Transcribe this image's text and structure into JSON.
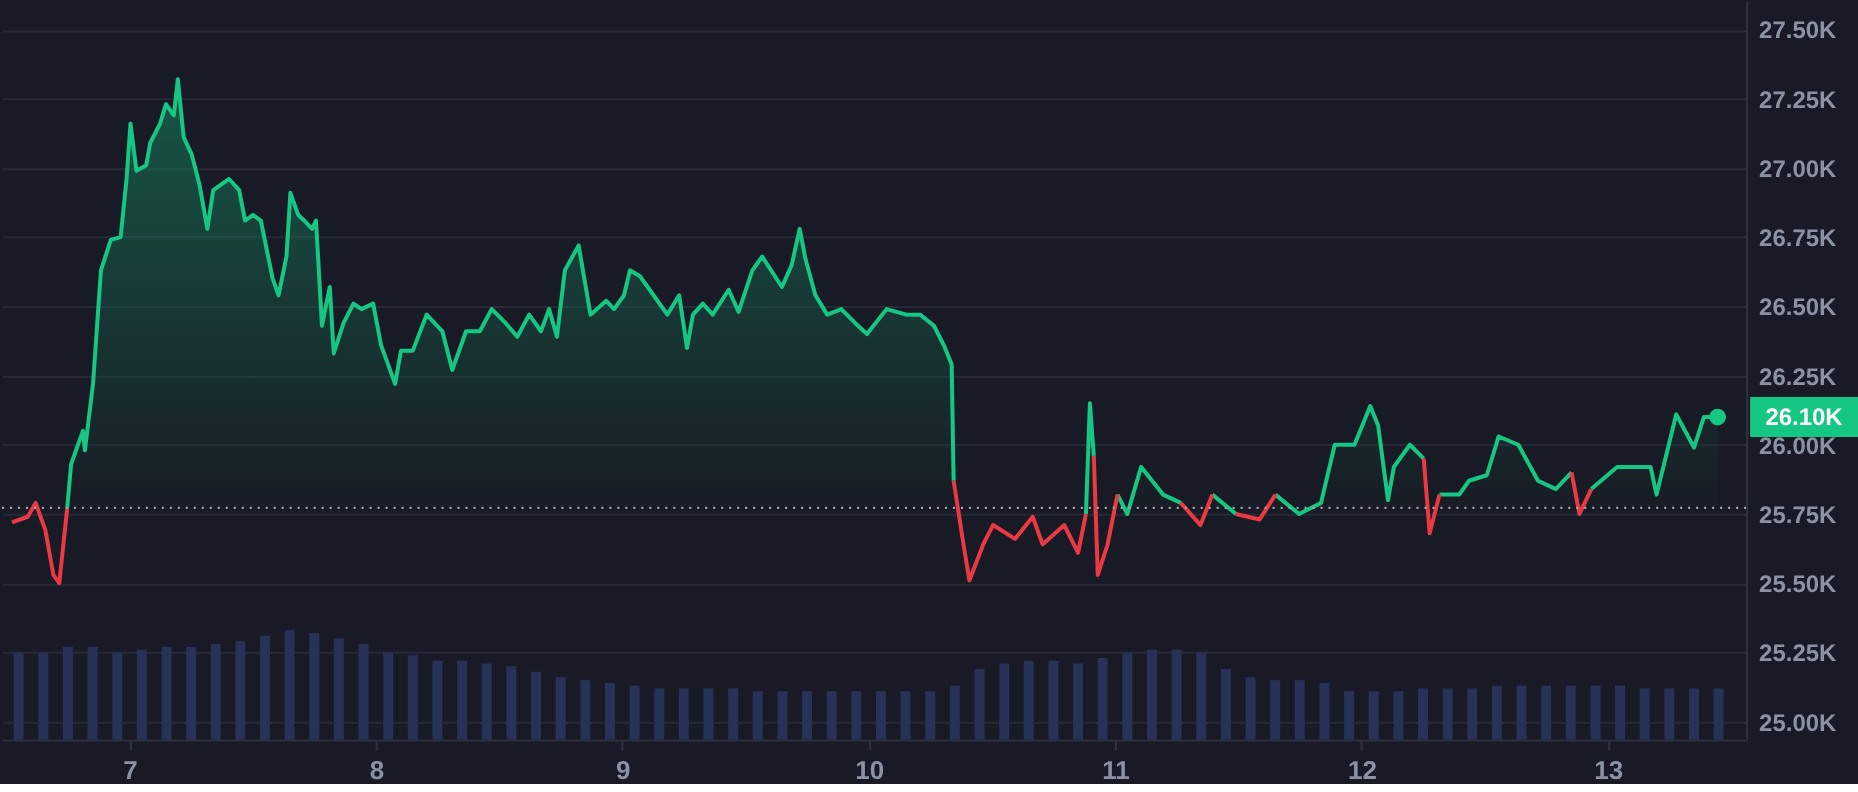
{
  "chart_data": {
    "type": "line",
    "xlim": [
      6.523,
      13.521
    ],
    "xticks": [
      7,
      8,
      9,
      10,
      11,
      12,
      13
    ],
    "ylim": [
      24.935,
      27.605
    ],
    "yticks": [
      {
        "value": 25.0,
        "label": "25.00K"
      },
      {
        "value": 25.25,
        "label": "25.25K"
      },
      {
        "value": 25.5,
        "label": "25.50K"
      },
      {
        "value": 25.75,
        "label": "25.75K"
      },
      {
        "value": 26.0,
        "label": "26.00K"
      },
      {
        "value": 26.25,
        "label": "26.25K"
      },
      {
        "value": 26.5,
        "label": "26.50K"
      },
      {
        "value": 26.75,
        "label": "26.75K"
      },
      {
        "value": 27.0,
        "label": "27.00K"
      },
      {
        "value": 27.25,
        "label": "27.25K"
      },
      {
        "value": 27.5,
        "label": "27.50K"
      }
    ],
    "grid": "y",
    "line_style": "solid",
    "ref_lines": [
      {
        "axis": "y",
        "value": 25.772,
        "color": "#a0a6b4",
        "line_style": "dotted"
      }
    ],
    "annotations": [
      {
        "text": "26.10K",
        "x": 13.446,
        "y": 26.1
      }
    ],
    "series": [
      {
        "type": "bar",
        "color": "#283158",
        "x": [
          6.55,
          6.65,
          6.75,
          6.85,
          6.95,
          7.05,
          7.15,
          7.25,
          7.35,
          7.45,
          7.55,
          7.65,
          7.75,
          7.85,
          7.95,
          8.05,
          8.15,
          8.25,
          8.35,
          8.45,
          8.55,
          8.65,
          8.75,
          8.85,
          8.95,
          9.05,
          9.15,
          9.25,
          9.35,
          9.45,
          9.55,
          9.65,
          9.75,
          9.85,
          9.95,
          10.05,
          10.15,
          10.25,
          10.35,
          10.45,
          10.55,
          10.65,
          10.75,
          10.85,
          10.95,
          11.05,
          11.15,
          11.25,
          11.35,
          11.45,
          11.55,
          11.65,
          11.75,
          11.85,
          11.95,
          12.05,
          12.15,
          12.25,
          12.35,
          12.45,
          12.55,
          12.65,
          12.75,
          12.85,
          12.95,
          13.05,
          13.15,
          13.25,
          13.35,
          13.45
        ],
        "values": [
          25.25,
          25.25,
          25.27,
          25.27,
          25.25,
          25.26,
          25.27,
          25.27,
          25.28,
          25.29,
          25.31,
          25.33,
          25.32,
          25.3,
          25.28,
          25.25,
          25.24,
          25.22,
          25.22,
          25.21,
          25.2,
          25.18,
          25.16,
          25.15,
          25.14,
          25.13,
          25.12,
          25.12,
          25.12,
          25.12,
          25.11,
          25.11,
          25.11,
          25.11,
          25.11,
          25.11,
          25.11,
          25.11,
          25.13,
          25.19,
          25.21,
          25.22,
          25.22,
          25.21,
          25.23,
          25.25,
          25.26,
          25.26,
          25.25,
          25.19,
          25.16,
          25.15,
          25.15,
          25.14,
          25.11,
          25.11,
          25.11,
          25.12,
          25.12,
          25.12,
          25.13,
          25.13,
          25.13,
          25.13,
          25.13,
          25.13,
          25.12,
          25.12,
          25.12,
          25.12
        ]
      },
      {
        "type": "area",
        "color": "#16c784",
        "x": [
          6.747,
          6.763,
          6.811,
          6.819,
          6.852,
          6.884,
          6.924,
          6.964,
          6.988,
          7.004,
          7.028,
          7.068,
          7.084,
          7.124,
          7.148,
          7.18,
          7.196,
          7.22,
          7.252,
          7.284,
          7.316,
          7.34,
          7.404,
          7.445,
          7.469,
          7.501,
          7.533,
          7.581,
          7.605,
          7.637,
          7.653,
          7.685,
          7.709,
          7.741,
          7.757,
          7.781,
          7.813,
          7.829,
          7.869,
          7.909,
          7.941,
          7.989,
          8.021,
          8.078,
          8.102,
          8.15,
          8.206,
          8.27,
          8.31,
          8.366,
          8.422,
          8.47,
          8.526,
          8.574,
          8.622,
          8.67,
          8.703,
          8.735,
          8.767,
          8.823,
          8.871,
          8.935,
          8.967,
          9.007,
          9.031,
          9.071,
          9.127,
          9.183,
          9.231,
          9.263,
          9.287,
          9.327,
          9.367,
          9.432,
          9.472,
          9.528,
          9.568,
          9.648,
          9.688,
          9.72,
          9.744,
          9.784,
          9.832,
          9.889,
          9.945,
          9.993,
          10.073,
          10.153,
          10.209,
          10.265,
          10.305,
          10.337,
          10.345,
          10.6,
          10.882,
          10.898,
          10.914,
          10.96,
          11.01,
          11.05,
          11.106,
          11.195,
          11.267,
          11.33,
          11.395,
          11.491,
          11.57,
          11.651,
          11.747,
          11.836,
          11.892,
          11.972,
          12.036,
          12.068,
          12.108,
          12.132,
          12.197,
          12.253,
          12.29,
          12.317,
          12.397,
          12.437,
          12.509,
          12.557,
          12.637,
          12.717,
          12.789,
          12.853,
          12.9,
          12.933,
          13.038,
          13.174,
          13.198,
          13.278,
          13.35,
          13.39,
          13.446
        ],
        "values": [
          25.77,
          25.93,
          26.05,
          25.98,
          26.22,
          26.63,
          26.74,
          26.75,
          26.96,
          27.16,
          26.99,
          27.01,
          27.09,
          27.16,
          27.23,
          27.19,
          27.32,
          27.11,
          27.05,
          26.94,
          26.78,
          26.92,
          26.96,
          26.92,
          26.81,
          26.83,
          26.81,
          26.6,
          26.54,
          26.68,
          26.91,
          26.83,
          26.81,
          26.78,
          26.81,
          26.43,
          26.57,
          26.33,
          26.44,
          26.51,
          26.49,
          26.51,
          26.36,
          26.22,
          26.34,
          26.34,
          26.47,
          26.41,
          26.27,
          26.41,
          26.41,
          26.49,
          26.44,
          26.39,
          26.47,
          26.41,
          26.49,
          26.39,
          26.63,
          26.72,
          26.47,
          26.52,
          26.49,
          26.54,
          26.63,
          26.61,
          26.54,
          26.47,
          26.54,
          26.35,
          26.47,
          26.51,
          26.47,
          26.56,
          26.48,
          26.63,
          26.68,
          26.57,
          26.65,
          26.78,
          26.67,
          26.54,
          26.47,
          26.49,
          26.44,
          26.4,
          26.49,
          26.47,
          26.47,
          26.43,
          26.36,
          26.29,
          25.87,
          null,
          25.75,
          26.15,
          25.96,
          null,
          25.82,
          25.75,
          25.92,
          25.82,
          25.79,
          null,
          25.82,
          25.75,
          null,
          25.82,
          25.75,
          25.79,
          26.0,
          26.0,
          26.14,
          26.07,
          25.8,
          25.92,
          26.0,
          25.95,
          null,
          25.82,
          25.82,
          25.87,
          25.89,
          26.03,
          26.0,
          25.87,
          25.84,
          25.9,
          null,
          25.84,
          25.92,
          25.92,
          25.82,
          26.11,
          25.99,
          26.1,
          26.1
        ]
      },
      {
        "type": "line",
        "color": "#ea3943",
        "x": [
          6.523,
          6.587,
          6.619,
          6.659,
          6.691,
          6.715,
          6.747,
          8.5,
          10.345,
          10.385,
          10.409,
          10.465,
          10.505,
          10.594,
          10.666,
          10.706,
          10.794,
          10.85,
          10.882,
          10.9,
          10.914,
          10.93,
          10.97,
          11.01,
          11.1,
          11.267,
          11.347,
          11.395,
          11.45,
          11.491,
          11.587,
          11.651,
          12.0,
          12.253,
          12.277,
          12.317,
          12.6,
          12.853,
          12.885,
          12.933
        ],
        "values": [
          25.72,
          25.74,
          25.79,
          25.69,
          25.53,
          25.5,
          25.77,
          null,
          25.87,
          25.64,
          25.51,
          25.64,
          25.71,
          25.66,
          25.74,
          25.64,
          25.71,
          25.61,
          25.75,
          null,
          25.96,
          25.53,
          25.64,
          25.82,
          null,
          25.79,
          25.71,
          25.82,
          null,
          25.75,
          25.73,
          25.82,
          null,
          25.95,
          25.68,
          25.82,
          null,
          25.9,
          25.75,
          25.84
        ]
      }
    ]
  }
}
